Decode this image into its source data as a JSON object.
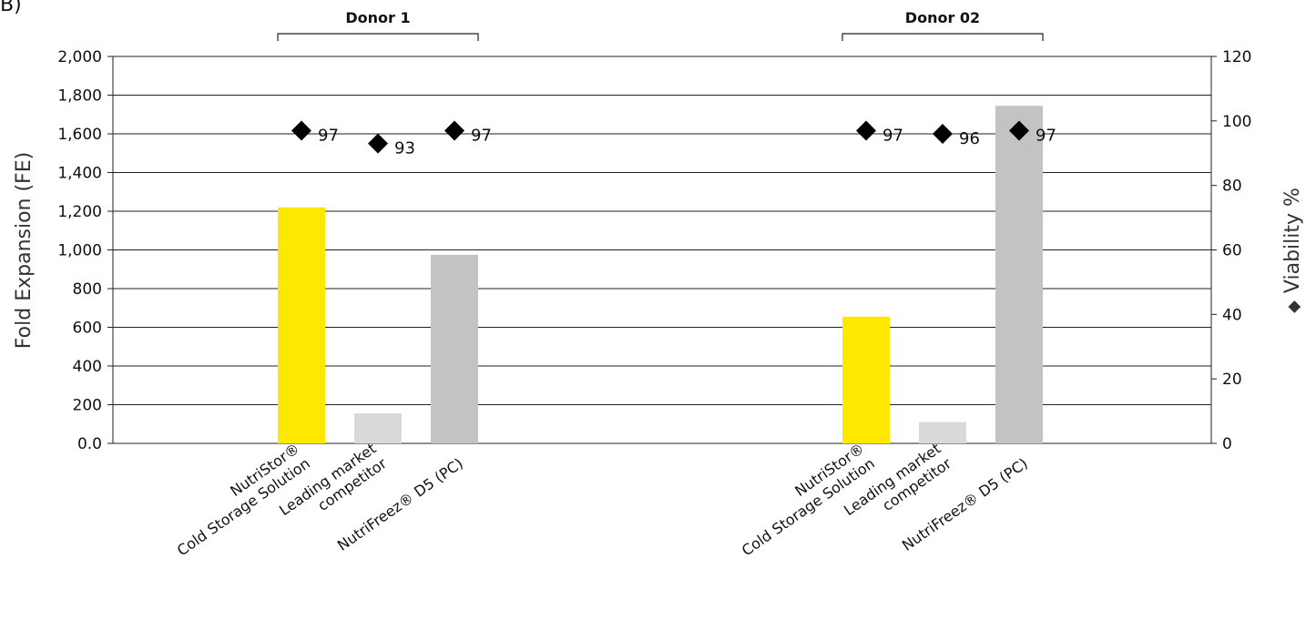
{
  "panel_label": "B)",
  "chart_data": {
    "type": "bar",
    "groups": [
      {
        "name": "Donor 1",
        "categories": [
          "NutriStor® Cold Storage Solution",
          "Leading market competitor",
          "NutriFreez® D5 (PC)"
        ]
      },
      {
        "name": "Donor 02",
        "categories": [
          "NutriStor® Cold Storage Solution",
          "Leading market competitor",
          "NutriFreez® D5 (PC)"
        ]
      }
    ],
    "category_labels": [
      [
        "NutriStor®",
        "Cold Storage Solution"
      ],
      [
        "Leading market",
        "competitor"
      ],
      [
        "NutriFreez® D5 (PC)"
      ]
    ],
    "series": [
      {
        "name": "Fold Expansion (FE)",
        "axis": "left",
        "mark": "bar",
        "values": [
          [
            1220,
            155,
            975
          ],
          [
            655,
            110,
            1745
          ]
        ]
      },
      {
        "name": "Viability %",
        "axis": "right",
        "mark": "diamond",
        "values": [
          [
            97,
            93,
            97
          ],
          [
            97,
            96,
            97
          ]
        ],
        "data_labels": [
          [
            "97",
            "93",
            "97"
          ],
          [
            "97",
            "96",
            "97"
          ]
        ]
      }
    ],
    "bar_colors": [
      "#FFE800",
      "#D9D9D9",
      "#C3C3C3"
    ],
    "marker_color": "#000000",
    "ylabel": "Fold Expansion (FE)",
    "y2label": "Viability %",
    "y2label_marker": "◆",
    "ylim": [
      0,
      2000
    ],
    "y2lim": [
      0,
      120
    ],
    "yticks": [
      "0.0",
      "200",
      "400",
      "600",
      "800",
      "1,000",
      "1,200",
      "1,400",
      "1,600",
      "1,800",
      "2,000"
    ],
    "y2ticks": [
      "0",
      "20",
      "40",
      "60",
      "80",
      "100",
      "120"
    ],
    "grid": true
  }
}
